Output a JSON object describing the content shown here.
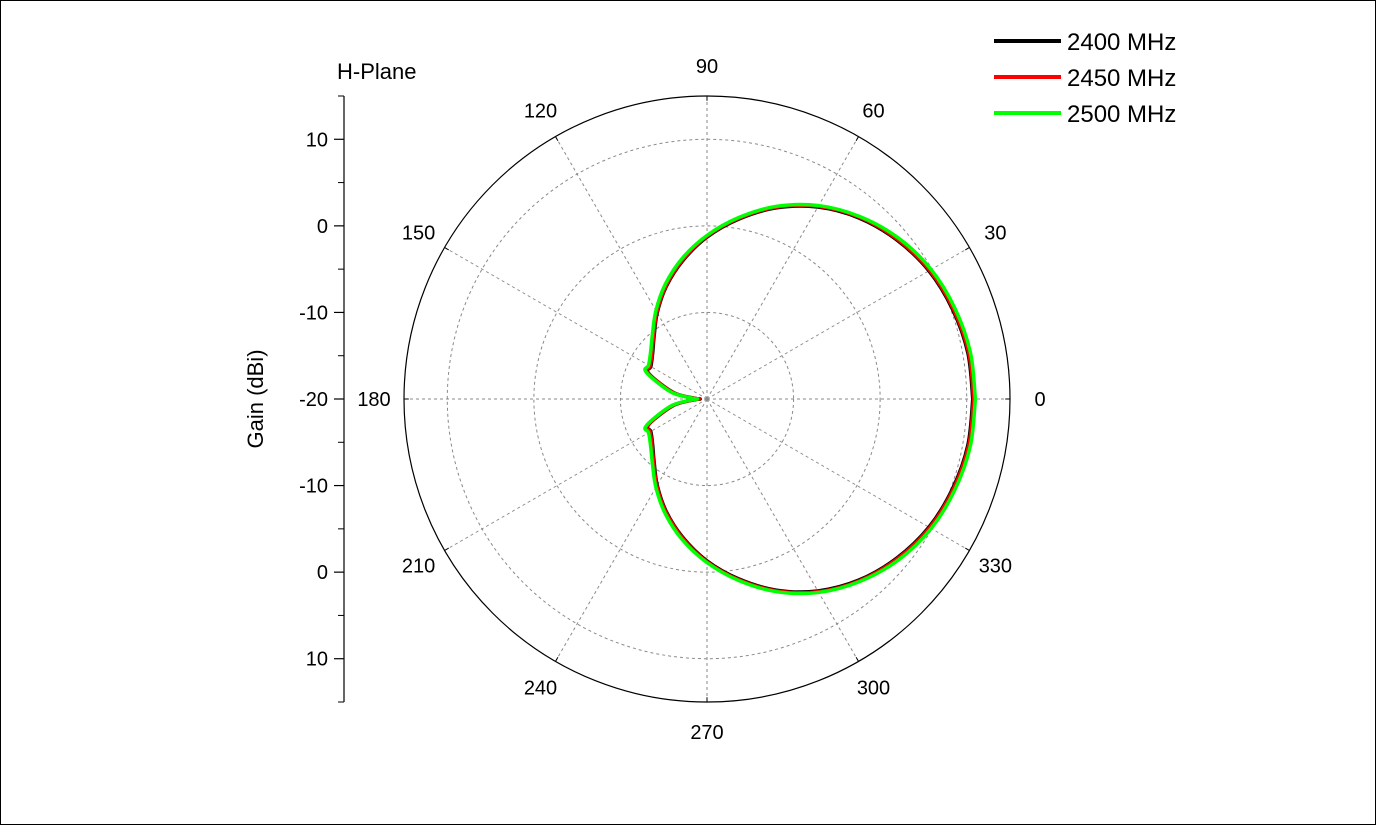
{
  "chart_data": {
    "type": "line",
    "projection": "polar",
    "title": "H-Plane",
    "ylabel": "Gain (dBi)",
    "angle_unit": "degrees",
    "angle_ticks": [
      0,
      30,
      60,
      90,
      120,
      150,
      180,
      210,
      240,
      270,
      300,
      330
    ],
    "angle_tick_labels": [
      "0",
      "30",
      "60",
      "90",
      "120",
      "150",
      "180",
      "210",
      "240",
      "270",
      "300",
      "330"
    ],
    "radial_range": [
      -20,
      15
    ],
    "radial_ticks": [
      -20,
      -10,
      0,
      10
    ],
    "radial_scale_labels": [
      "10",
      "0",
      "-10",
      "-20",
      "-10",
      "0",
      "10"
    ],
    "radial_scale_values": [
      10,
      0,
      -10,
      -20,
      -10,
      0,
      10
    ],
    "grid": true,
    "legend_position": "top-right",
    "series": [
      {
        "name": "2400 MHz",
        "color": "#000000",
        "theta": [
          0,
          10,
          20,
          30,
          40,
          50,
          60,
          70,
          80,
          90,
          100,
          110,
          120,
          130,
          140,
          150,
          155,
          160,
          170,
          178,
          180,
          182,
          190,
          200,
          205,
          210,
          220,
          230,
          240,
          250,
          260,
          270,
          280,
          290,
          300,
          310,
          320,
          330,
          340,
          350,
          360
        ],
        "r": [
          10.7,
          10.6,
          10.2,
          9.6,
          8.6,
          7.3,
          5.6,
          3.5,
          1.1,
          -1.3,
          -3.8,
          -6.2,
          -8.5,
          -10.5,
          -11.8,
          -12.5,
          -12.4,
          -13.8,
          -16.3,
          -18.8,
          -19.2,
          -18.8,
          -16.3,
          -13.8,
          -12.4,
          -12.5,
          -11.8,
          -10.5,
          -8.5,
          -6.2,
          -3.8,
          -1.3,
          1.1,
          3.5,
          5.6,
          7.3,
          8.6,
          9.6,
          10.2,
          10.6,
          10.7
        ]
      },
      {
        "name": "2450 MHz",
        "color": "#ff0000",
        "theta": [
          0,
          10,
          20,
          30,
          40,
          50,
          60,
          70,
          80,
          90,
          100,
          110,
          120,
          130,
          140,
          150,
          155,
          160,
          170,
          178,
          180,
          182,
          190,
          200,
          205,
          210,
          220,
          230,
          240,
          250,
          260,
          270,
          280,
          290,
          300,
          310,
          320,
          330,
          340,
          350,
          360
        ],
        "r": [
          10.8,
          10.7,
          10.3,
          9.7,
          8.7,
          7.4,
          5.7,
          3.6,
          1.2,
          -1.2,
          -3.7,
          -6.1,
          -8.4,
          -10.4,
          -11.7,
          -12.4,
          -12.3,
          -13.7,
          -16.2,
          -18.7,
          -19.1,
          -18.7,
          -16.2,
          -13.7,
          -12.3,
          -12.4,
          -11.7,
          -10.4,
          -8.4,
          -6.1,
          -3.7,
          -1.2,
          1.2,
          3.6,
          5.7,
          7.4,
          8.7,
          9.7,
          10.3,
          10.7,
          10.8
        ]
      },
      {
        "name": "2500 MHz",
        "color": "#00ff00",
        "theta": [
          0,
          10,
          20,
          30,
          40,
          50,
          60,
          70,
          80,
          90,
          100,
          110,
          120,
          130,
          140,
          150,
          155,
          160,
          170,
          178,
          180,
          182,
          190,
          200,
          205,
          210,
          220,
          230,
          240,
          250,
          260,
          270,
          280,
          290,
          300,
          310,
          320,
          330,
          340,
          350,
          360
        ],
        "r": [
          11.0,
          10.9,
          10.5,
          9.9,
          8.9,
          7.5,
          5.8,
          3.7,
          1.3,
          -1.1,
          -3.5,
          -5.9,
          -8.2,
          -10.2,
          -11.5,
          -12.2,
          -12.1,
          -13.5,
          -16.0,
          -18.5,
          -18.9,
          -18.5,
          -16.0,
          -13.5,
          -12.1,
          -12.2,
          -11.5,
          -10.2,
          -8.2,
          -5.9,
          -3.5,
          -1.1,
          1.3,
          3.7,
          5.8,
          7.5,
          8.9,
          9.9,
          10.5,
          10.9,
          11.0
        ]
      }
    ]
  }
}
